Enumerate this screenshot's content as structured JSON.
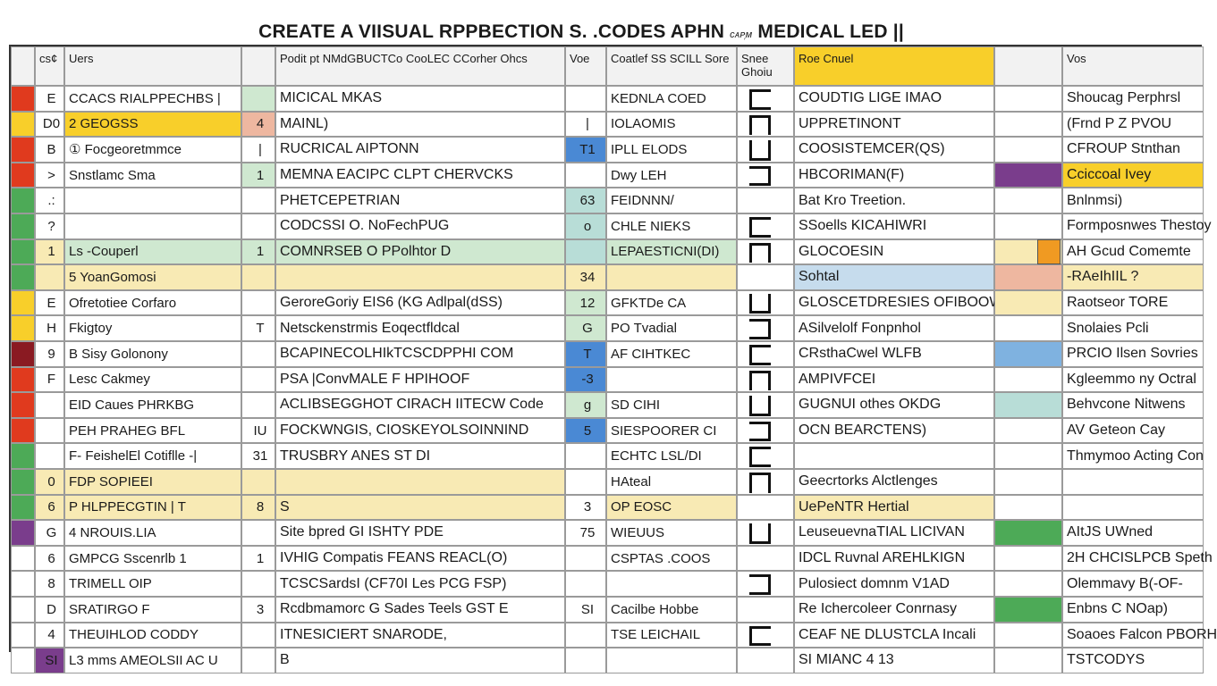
{
  "title": "CREATE A VIISUAL RPPBECTION S. .CODES APHN",
  "title_small": "ᴄᴀᴘ᷊ᴍ",
  "title_tail": "MEDICAL LED ||",
  "headers": [
    "cs¢",
    "Uers",
    "",
    "Podit pt NMdGBUCTCo CooLEC CCorher Ohcs",
    "Voe",
    "Coatlef SS SCILL Sore",
    "Snee Ghoiu",
    "Roe Cnuel",
    "",
    "Vos"
  ],
  "colors": {
    "red": "#e03a1e",
    "yellow": "#f8cf2a",
    "green": "#4daa57",
    "purple": "#7a3d8c",
    "orange": "#f09a22",
    "light_yellow": "#f8eab4",
    "light_green": "#cfe8d0",
    "teal": "#b8ddd7",
    "blue": "#4a89d4",
    "light_blue": "#c6dced",
    "dark_red": "#8a1a22",
    "salmon": "#eeb7a0",
    "steel_blue": "#7fb2e0",
    "mint": "#bde0cf"
  },
  "rows": [
    {
      "c0": "E",
      "c1": "CCACS RIALPPECHBS |",
      "c2": "",
      "c3": "MICICAL MKAS",
      "c4": "",
      "c5": "KEDNLA COED",
      "c6": "",
      "c7": "COUDTIG LIGE IMAO",
      "c8": "",
      "c9": "Shoucag Perphrsl"
    },
    {
      "c0": "D0",
      "c1": "2 GEOGSS",
      "c2": "4",
      "c3": "MAINL)",
      "c4": "|",
      "c5": "IOLAOMIS",
      "c6": "",
      "c7": "UPPRETINONT",
      "c8": "",
      "c9": "(Frnd P Z PVOU"
    },
    {
      "c0": "B",
      "c1": "① Focgeoretmmce",
      "c2": "|",
      "c3": "RUCRICAL AIPTONN",
      "c4": "T1",
      "c5": "IPLL ELODS",
      "c6": "",
      "c7": "COOSISTEMCER(QS)",
      "c8": "",
      "c9": "CFROUP Stnthan"
    },
    {
      "c0": ">",
      "c1": "Snstlamc Sma",
      "c2": "1",
      "c3": "MEMNA EACIPC CLPT CHERVCKS",
      "c4": "",
      "c5": "Dwy LEH",
      "c6": "",
      "c7": "HBCORIMAN(F)",
      "c8": "",
      "c9": "Cciccoal Ivey"
    },
    {
      "c0": ".:",
      "c1": "",
      "c2": "",
      "c3": "PHETCEPETRIAN",
      "c4": "63",
      "c5": "FEIDNNN/",
      "c6": "",
      "c7": "Bat Kro Treetion.",
      "c8": "",
      "c9": "Bnlnmsi)"
    },
    {
      "c0": "?",
      "c1": "",
      "c2": "",
      "c3": "CODCSSI O. NoFechPUG",
      "c4": "o",
      "c5": "CHLE NIEKS",
      "c6": "",
      "c7": "SSoells KICAHIWRI",
      "c8": "",
      "c9": "Formposnwes Thestoy"
    },
    {
      "c0": "1",
      "c1": "Ls -Couperl",
      "c2": "1",
      "c3": "COMNRSEB O PPolhtor D",
      "c4": "",
      "c5": "LEPAESTICNI(DI)",
      "c6": "",
      "c7": "GLOCOESIN",
      "c8": "",
      "c9": "AH Gcud Comemte"
    },
    {
      "c0": "",
      "c1": "5 YoanGomosi",
      "c2": "",
      "c3": "",
      "c4": "34",
      "c5": "",
      "c6": "",
      "c7": "Sohtal",
      "c8": "",
      "c9": "-RAeIhIIL ?"
    },
    {
      "c0": "E",
      "c1": "Ofretotiee Corfaro",
      "c2": "",
      "c3": "GeroreGoriy EIS6 (KG Adlpal(dSS)",
      "c4": "12",
      "c5": "GFKTDe CA",
      "c6": "",
      "c7": "GLOSCETDRESIES OFIBOOW",
      "c8": "",
      "c9": "Raotseor TORE"
    },
    {
      "c0": "H",
      "c1": "Fkigtoy",
      "c2": "T",
      "c3": "Netsckenstrmis Eoqectfldcal",
      "c4": "G",
      "c5": "PO Tvadial",
      "c6": "",
      "c7": "ASilvelolf Fonpnhol",
      "c8": "",
      "c9": "Snolaies Pcli"
    },
    {
      "c0": "9",
      "c1": "B Sisy Golonony",
      "c2": "",
      "c3": "BCAPINECOLHIkTCSCDPPHI COM",
      "c4": "T",
      "c5": "AF CIHTKEC",
      "c6": "",
      "c7": "CRsthaCwel WLFB",
      "c8": "",
      "c9": "PRCIO Ilsen Sovries"
    },
    {
      "c0": "F",
      "c1": "Lesc Cakmey",
      "c2": "",
      "c3": "PSA |ConvMALE F HPIHOOF",
      "c4": "-3",
      "c5": "",
      "c6": "",
      "c7": "AMPIVFCEI",
      "c8": "",
      "c9": "Kgleemmo ny Octral"
    },
    {
      "c0": "",
      "c1": "EID Caues PHRKBG",
      "c2": "",
      "c3": "ACLIBSEGGHOT CIRACH IITECW Code",
      "c4": "g",
      "c5": "SD CIHI",
      "c6": "",
      "c7": "GUGNUI othes OKDG",
      "c8": "",
      "c9": "Behvcone Nitwens"
    },
    {
      "c0": "",
      "c1": "PEH PRAHEG BFL",
      "c2": "IU",
      "c3": "FOCKWNGIS, CIOSKEYOLSOINNIND",
      "c4": "5",
      "c5": "SIESPOORER CI",
      "c6": "",
      "c7": "OCN BEARCTENS)",
      "c8": "",
      "c9": "AV Geteon Cay"
    },
    {
      "c0": "",
      "c1": "F- FeishelEl Cotiflle -|",
      "c2": "31",
      "c3": "TRUSBRY ANES ST DI",
      "c4": "",
      "c5": "ECHTC LSL/DI",
      "c6": "",
      "c7": "",
      "c8": "",
      "c9": "Thmymoo Acting Con"
    },
    {
      "c0": "0",
      "c1": "FDP SOPIEEI",
      "c2": "",
      "c3": "",
      "c4": "",
      "c5": "HAteal",
      "c6": "",
      "c7": "Geecrtorks Alctlenges",
      "c8": "",
      "c9": ""
    },
    {
      "c0": "6",
      "c1": "P HLPPECGTIN | T",
      "c2": "8",
      "c3": "S",
      "c4": "3",
      "c5": "OP EOSC",
      "c6": "",
      "c7": "UePeNTR Hertial",
      "c8": "",
      "c9": ""
    },
    {
      "c0": "G",
      "c1": "4 NROUIS.LIA",
      "c2": "",
      "c3": "Site bpred GI ISHTY PDE",
      "c4": "75",
      "c5": "WIEUUS",
      "c6": "",
      "c7": "LeuseuevnaTIAL LICIVAN",
      "c8": "",
      "c9": "AItJS UWned"
    },
    {
      "c0": "6",
      "c1": "GMPCG Sscenrlb 1",
      "c2": "1",
      "c3": "IVHIG Compatis FEANS REACL(O)",
      "c4": "",
      "c5": "CSPTAS .COOS",
      "c6": "",
      "c7": "IDCL Ruvnal AREHLKIGN",
      "c8": "",
      "c9": "2H CHCISLPCB Speth"
    },
    {
      "c0": "8",
      "c1": "TRIMELL OIP",
      "c2": "",
      "c3": "TCSCSardsI (CF70I Les PCG FSP)",
      "c4": "",
      "c5": "",
      "c6": "",
      "c7": "Pulosiect domnm V1AD",
      "c8": "",
      "c9": "Olemmavy B(-OF-"
    },
    {
      "c0": "D",
      "c1": "SRATIRGO F",
      "c2": "3",
      "c3": "Rcdbmamorc G Sades Teels GST E",
      "c4": "SI",
      "c5": "Cacilbe Hobbe",
      "c6": "",
      "c7": "Re Ichercoleer Conrnasy",
      "c8": "",
      "c9": "Enbns C NOap)"
    },
    {
      "c0": "4",
      "c1": "THEUIHLOD CODDY",
      "c2": "",
      "c3": "ITNESICIERT SNARODE,",
      "c4": "",
      "c5": "TSE LEICHAIL",
      "c6": "",
      "c7": "CEAF NE DLUSTCLA Incali",
      "c8": "",
      "c9": "Soaoes Falcon PBORH"
    },
    {
      "c0": "SI",
      "c1": "L3 mms AMEOLSII AC U",
      "c2": "",
      "c3": "B",
      "c4": "",
      "c5": "",
      "c6": "",
      "c7": "SI MIANC 4 13",
      "c8": "",
      "c9": "TSTCODYS"
    }
  ]
}
